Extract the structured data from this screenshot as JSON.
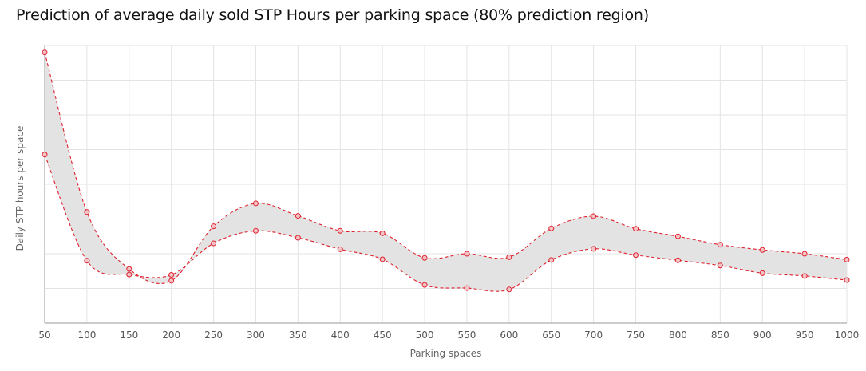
{
  "chart_data": {
    "type": "area",
    "title": "Prediction of average daily sold STP  Hours per parking space (80% prediction region)",
    "xlabel": "Parking spaces",
    "ylabel": "Daily STP hours per space",
    "x": [
      50,
      100,
      150,
      200,
      250,
      300,
      350,
      400,
      450,
      500,
      550,
      600,
      650,
      700,
      750,
      800,
      850,
      900,
      950,
      1000
    ],
    "xlim": [
      50,
      1000
    ],
    "ylim": [
      0,
      8
    ],
    "grid": true,
    "legend": "none",
    "series": [
      {
        "values": [
          7.8,
          3.2,
          1.56,
          1.22,
          2.79,
          3.45,
          3.09,
          2.66,
          2.59,
          1.88,
          2.0,
          1.9,
          2.73,
          3.08,
          2.72,
          2.5,
          2.26,
          2.11,
          2.0,
          1.83
        ]
      },
      {
        "values": [
          4.86,
          1.8,
          1.4,
          1.39,
          2.3,
          2.66,
          2.46,
          2.13,
          1.84,
          1.1,
          1.01,
          0.97,
          1.82,
          2.14,
          1.96,
          1.81,
          1.66,
          1.44,
          1.36,
          1.24
        ]
      }
    ],
    "colors": {
      "band": "#e3e3e3",
      "line": "#e0212e",
      "grid": "#e3e3e3"
    }
  }
}
